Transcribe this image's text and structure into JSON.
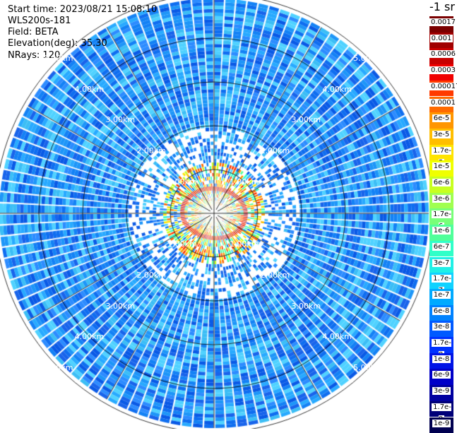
{
  "header": {
    "start_time": "Start time: 2023/08/21 15:08:10",
    "instrument": "WLS200s-181",
    "field": "Field: BETA",
    "elevation": "Elevation(deg): 35.30",
    "nrays": "NRays: 120"
  },
  "colorbar": {
    "units": "-1 sr",
    "labels": [
      "0.0017",
      "0.001",
      "0.0006",
      "0.0003",
      "0.00017",
      "0.0001",
      "6e-5",
      "3e-5",
      "1.7e-5",
      "1e-5",
      "6e-6",
      "3e-6",
      "1.7e-6",
      "1e-6",
      "6e-7",
      "3e-7",
      "1.7e-7",
      "1e-7",
      "6e-8",
      "3e-8",
      "1.7e-8",
      "1e-8",
      "6e-9",
      "3e-9",
      "1.7e-9",
      "1e-9"
    ],
    "colors": [
      "#7a0000",
      "#a00000",
      "#c80000",
      "#f00000",
      "#ff3a00",
      "#ff6a00",
      "#ff9600",
      "#ffbe00",
      "#ffe400",
      "#f0ff00",
      "#c8ff20",
      "#a0ff50",
      "#78ff78",
      "#50ff9a",
      "#30ffc8",
      "#20f0e6",
      "#10d2ff",
      "#00aaff",
      "#0082ff",
      "#005aff",
      "#0032ff",
      "#0014e6",
      "#0000c8",
      "#0000a0",
      "#000078",
      "#000050"
    ]
  },
  "range_rings": {
    "labels": [
      "1.00km",
      "2.00km",
      "3.00km",
      "4.00km",
      "5.00km"
    ]
  }
}
